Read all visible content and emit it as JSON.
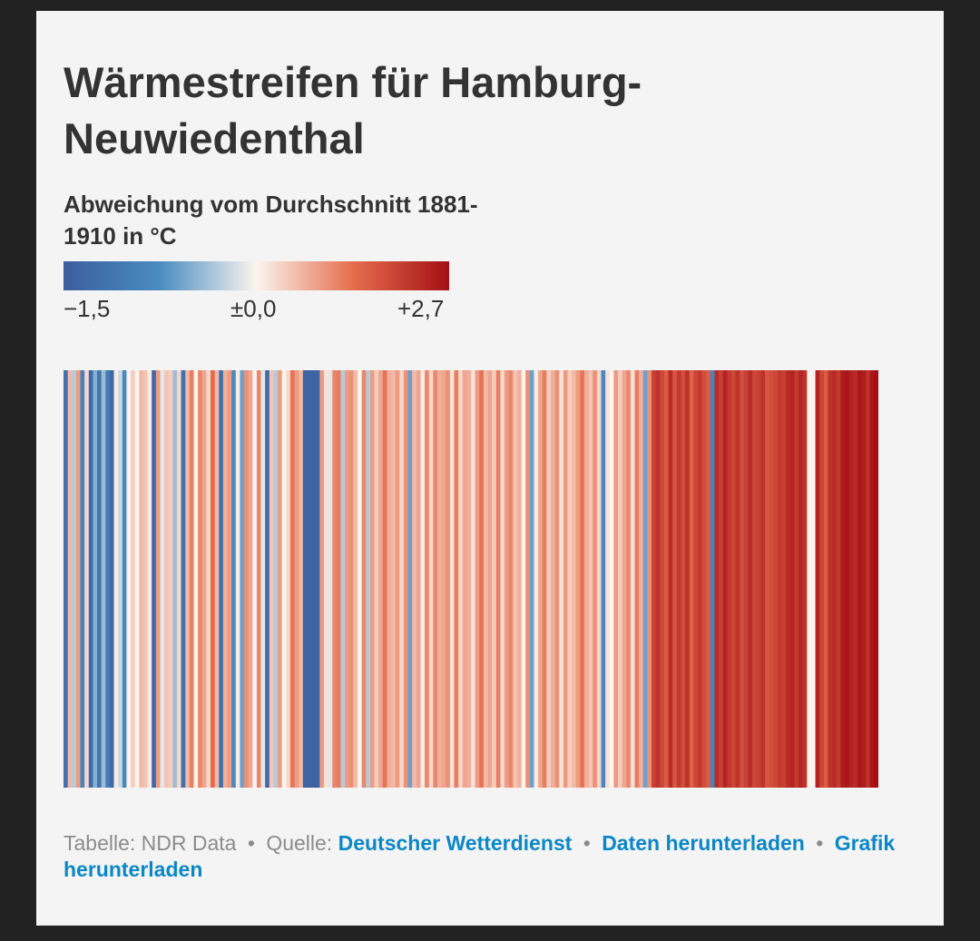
{
  "chart_data": {
    "type": "heatmap",
    "title": "Wärmestreifen für Hamburg-Neuwiedenthal",
    "legend": {
      "title": "Abweichung vom Durchschnitt 1881-1910 in °C",
      "min_label": "−1,5",
      "mid_label": "±0,0",
      "max_label": "+2,7",
      "min": -1.5,
      "max": 2.7
    },
    "colorscale": {
      "cold": "#3b5e9e",
      "cool": "#4a8cc2",
      "neutral": "#fbf5ee",
      "warm": "#e66e4e",
      "hot": "#a50f15"
    },
    "values": [
      -1.2,
      0.6,
      -0.3,
      0.9,
      -0.9,
      0.3,
      -1.3,
      -0.5,
      -1.1,
      -0.4,
      -1.0,
      -1.3,
      0.1,
      -0.2,
      -0.8,
      0.0,
      0.4,
      0.0,
      0.6,
      0.5,
      0.1,
      -1.3,
      0.9,
      -0.1,
      0.5,
      0.4,
      -0.4,
      0.3,
      -1.2,
      0.6,
      1.2,
      0.0,
      1.1,
      0.8,
      0.3,
      1.4,
      0.6,
      -1.2,
      0.7,
      0.9,
      -0.8,
      0.1,
      -0.6,
      1.0,
      0.8,
      0.0,
      1.1,
      -0.1,
      -1.3,
      0.5,
      -0.3,
      0.9,
      0.0,
      0.3,
      1.3,
      0.9,
      0.6,
      -1.4,
      -1.4,
      -1.4,
      -1.4,
      0.9,
      0.2,
      -0.1,
      1.1,
      1.2,
      -0.3,
      0.9,
      1.0,
      0.6,
      0.0,
      1.1,
      -0.3,
      0.9,
      0.4,
      0.8,
      1.3,
      0.7,
      0.6,
      0.9,
      0.3,
      1.0,
      -0.6,
      0.6,
      0.8,
      0.1,
      1.1,
      0.3,
      1.1,
      0.7,
      0.8,
      1.0,
      0.2,
      1.2,
      0.3,
      0.8,
      0.7,
      0.2,
      0.9,
      1.3,
      0.6,
      0.8,
      0.4,
      1.2,
      0.3,
      0.9,
      1.1,
      0.5,
      0.7,
      0.0,
      1.0,
      -0.6,
      0.1,
      0.8,
      1.2,
      0.4,
      0.7,
      1.0,
      0.2,
      0.9,
      0.4,
      0.6,
      0.9,
      1.3,
      0.7,
      0.5,
      1.0,
      0.3,
      -0.8,
      0.2,
      0.0,
      0.9,
      0.4,
      0.8,
      1.1,
      0.2,
      1.2,
      0.7,
      -0.6,
      1.0,
      2.0,
      2.2,
      1.9,
      1.6,
      2.3,
      1.7,
      2.1,
      1.8,
      2.2,
      1.5,
      1.9,
      2.1,
      1.8,
      1.6,
      -0.9,
      2.3,
      2.0,
      2.4,
      2.1,
      1.9,
      2.2,
      1.8,
      2.0,
      2.3,
      1.9,
      2.0,
      2.2,
      1.7,
      1.8,
      1.9,
      2.1,
      2.0,
      2.3,
      2.4,
      2.1,
      2.4,
      2.2,
      0.0,
      0.0,
      2.4,
      1.9,
      1.6,
      2.2,
      2.3,
      2.1,
      2.5,
      2.6,
      2.4,
      2.3,
      2.6,
      2.5,
      2.2,
      2.6,
      2.7
    ]
  },
  "footer": {
    "prefix": "Tabelle: NDR Data",
    "separator": "•",
    "source_label": "Quelle:",
    "source_link": "Deutscher Wetterdienst",
    "download_data": "Daten herunterladen",
    "download_chart": "Grafik herunterladen"
  }
}
